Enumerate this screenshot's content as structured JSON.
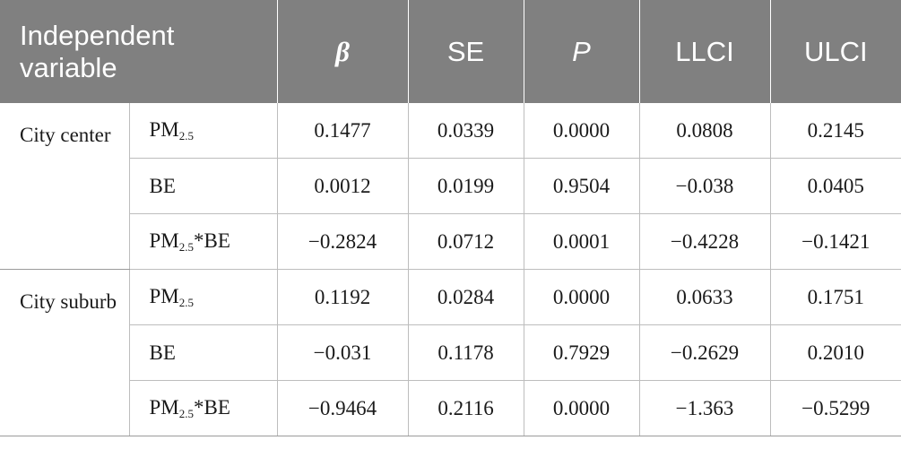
{
  "table": {
    "headers": {
      "independent_variable": "Independent variable",
      "beta": "β",
      "se": "SE",
      "p": "P",
      "llci": "LLCI",
      "ulci": "ULCI"
    },
    "groups": [
      {
        "label": "City center",
        "rows": [
          {
            "var_base": "PM",
            "var_sub": "2.5",
            "var_rest": "",
            "beta": "0.1477",
            "se": "0.0339",
            "p": "0.0000",
            "llci": "0.0808",
            "ulci": "0.2145"
          },
          {
            "var_base": "BE",
            "var_sub": "",
            "var_rest": "",
            "beta": "0.0012",
            "se": "0.0199",
            "p": "0.9504",
            "llci": "−0.038",
            "ulci": "0.0405"
          },
          {
            "var_base": "PM",
            "var_sub": "2.5",
            "var_rest": "*BE",
            "beta": "−0.2824",
            "se": "0.0712",
            "p": "0.0001",
            "llci": "−0.4228",
            "ulci": "−0.1421"
          }
        ]
      },
      {
        "label": "City suburb",
        "rows": [
          {
            "var_base": "PM",
            "var_sub": "2.5",
            "var_rest": "",
            "beta": "0.1192",
            "se": "0.0284",
            "p": "0.0000",
            "llci": "0.0633",
            "ulci": "0.1751"
          },
          {
            "var_base": "BE",
            "var_sub": "",
            "var_rest": "",
            "beta": "−0.031",
            "se": "0.1178",
            "p": "0.7929",
            "llci": "−0.2629",
            "ulci": "0.2010"
          },
          {
            "var_base": "PM",
            "var_sub": "2.5",
            "var_rest": "*BE",
            "beta": "−0.9464",
            "se": "0.2116",
            "p": "0.0000",
            "llci": "−1.363",
            "ulci": "−0.5299"
          }
        ]
      }
    ]
  }
}
